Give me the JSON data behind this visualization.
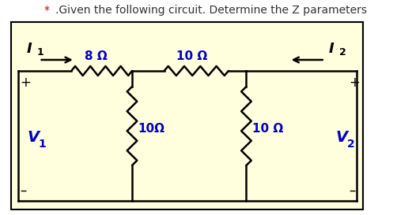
{
  "title_star": "* ",
  "title_rest": ".Given the following circuit. Determine the Z parameters",
  "title_color_star": "#cc0000",
  "title_color_text": "#333333",
  "bg_color": "#ffffdd",
  "outer_bg": "#ffffff",
  "label_color": "#0000cc",
  "wire_color": "#000000",
  "resistor_8_label": "8 Ω",
  "resistor_10h_label": "10 Ω",
  "resistor_10v1_label": "10Ω",
  "resistor_10v2_label": "10 Ω",
  "I1_label": "I",
  "I1_sub": "1",
  "I2_label": "I",
  "I2_sub": "2",
  "V1_label": "V",
  "V1_sub": "1",
  "V2_label": "V",
  "V2_sub": "2",
  "plus": "+",
  "minus": "–"
}
